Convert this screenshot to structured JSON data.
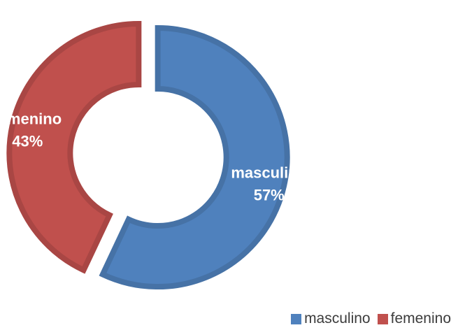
{
  "chart_data": {
    "type": "pie",
    "subtype": "donut-exploded",
    "categories": [
      "masculino",
      "femenino"
    ],
    "values": [
      57,
      43
    ],
    "percent_labels": [
      "57%",
      "43%"
    ],
    "colors": [
      "#4f81bd",
      "#c0504d"
    ],
    "legend": {
      "position": "bottom-right",
      "entries": [
        "masculino",
        "femenino"
      ]
    }
  }
}
